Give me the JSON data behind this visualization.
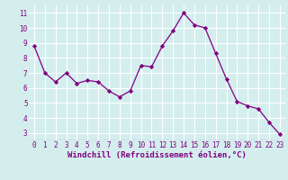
{
  "x": [
    0,
    1,
    2,
    3,
    4,
    5,
    6,
    7,
    8,
    9,
    10,
    11,
    12,
    13,
    14,
    15,
    16,
    17,
    18,
    19,
    20,
    21,
    22,
    23
  ],
  "y": [
    8.8,
    7.0,
    6.4,
    7.0,
    6.3,
    6.5,
    6.4,
    5.8,
    5.4,
    5.8,
    7.5,
    7.4,
    8.8,
    9.8,
    11.0,
    10.2,
    10.0,
    8.3,
    6.6,
    5.1,
    4.8,
    4.6,
    3.7,
    2.9
  ],
  "line_color": "#800080",
  "marker_color": "#800080",
  "bg_color": "#d4eeee",
  "grid_color": "#ffffff",
  "xlabel": "Windchill (Refroidissement éolien,°C)",
  "xlabel_color": "#800080",
  "tick_color": "#800080",
  "ylim": [
    2.5,
    11.5
  ],
  "xlim": [
    -0.5,
    23.5
  ],
  "yticks": [
    3,
    4,
    5,
    6,
    7,
    8,
    9,
    10,
    11
  ],
  "xticks": [
    0,
    1,
    2,
    3,
    4,
    5,
    6,
    7,
    8,
    9,
    10,
    11,
    12,
    13,
    14,
    15,
    16,
    17,
    18,
    19,
    20,
    21,
    22,
    23
  ],
  "xtick_labels": [
    "0",
    "1",
    "2",
    "3",
    "4",
    "5",
    "6",
    "7",
    "8",
    "9",
    "10",
    "11",
    "12",
    "13",
    "14",
    "15",
    "16",
    "17",
    "18",
    "19",
    "20",
    "21",
    "22",
    "23"
  ],
  "tick_fontsize": 5.5,
  "xlabel_fontsize": 6.5
}
